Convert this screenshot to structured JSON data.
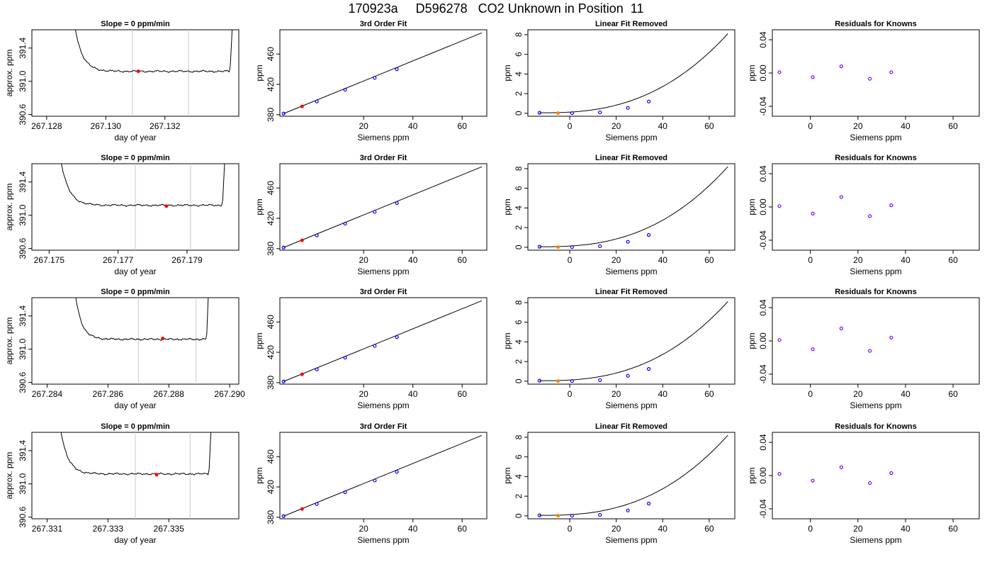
{
  "page": {
    "title": "170923a     D596278   CO2 Unknown in Position  11"
  },
  "colors": {
    "axis": "#000000",
    "trace": "#000000",
    "gridline": "#c8c8c8",
    "known_point": "#0000ff",
    "unknown_point": "#ff0000",
    "unknown_point_linear": "#ff7f00",
    "residual_point": "#8000ff"
  },
  "chart_data": [
    {
      "type": "line",
      "title": "Slope =  0  ppm/min",
      "xlabel": "day of year",
      "ylabel": "approx. ppm",
      "xlim": [
        267.1275,
        267.1345
      ],
      "ylim": [
        390.58,
        391.62
      ],
      "xticks": [
        "267.128",
        "267.130",
        "267.132"
      ],
      "xtick_values": [
        267.128,
        267.13,
        267.132
      ],
      "yticks": [
        "390.6",
        "391.0",
        "391.4"
      ],
      "ytick_values": [
        390.6,
        391.0,
        391.4
      ],
      "trace": {
        "x_start": 267.1288,
        "x_end": 267.1344,
        "level": 391.12
      },
      "window": [
        267.1309,
        267.1328
      ],
      "marker": {
        "x": 267.1311,
        "y": 391.12
      }
    },
    {
      "type": "scatter",
      "title": "3rd Order Fit",
      "xlabel": "Siemens ppm",
      "ylabel": "ppm",
      "xlim": [
        -14,
        70
      ],
      "ylim": [
        378,
        492
      ],
      "xticks": [
        "20",
        "40",
        "60"
      ],
      "xtick_values": [
        20,
        40,
        60
      ],
      "yticks": [
        "380",
        "420",
        "460"
      ],
      "ytick_values": [
        380,
        420,
        460
      ],
      "knowns": {
        "x": [
          -12.5,
          1,
          12.5,
          24.5,
          33.5
        ],
        "y": [
          381.5,
          397.5,
          413,
          428.5,
          440
        ]
      },
      "unknown": {
        "x": [
          -5
        ],
        "y": [
          391
        ]
      },
      "fit": {
        "x": [
          -12.5,
          68
        ],
        "y": [
          381.5,
          488
        ]
      }
    },
    {
      "type": "scatter",
      "title": "Linear Fit Removed",
      "xlabel": "Siemens ppm",
      "ylabel": "ppm",
      "xlim": [
        -18,
        71
      ],
      "ylim": [
        -0.3,
        8.5
      ],
      "xticks": [
        "0",
        "20",
        "40",
        "60"
      ],
      "xtick_values": [
        0,
        20,
        40,
        60
      ],
      "yticks": [
        "0",
        "2",
        "4",
        "6",
        "8"
      ],
      "ytick_values": [
        0,
        2,
        4,
        6,
        8
      ],
      "knowns": {
        "x": [
          -13,
          1,
          13,
          25,
          34
        ],
        "y": [
          0.05,
          0.02,
          0.1,
          0.55,
          1.2
        ]
      },
      "unknown": {
        "x": [
          -5
        ],
        "y": [
          0.02
        ]
      },
      "fit": {
        "x0": -13,
        "y0": 0.05,
        "x1": 68,
        "y1": 8.1
      }
    },
    {
      "type": "scatter",
      "title": "Residuals for Knowns",
      "xlabel": "Siemens ppm",
      "ylabel": "ppm",
      "xlim": [
        -16,
        71
      ],
      "ylim": [
        -0.052,
        0.052
      ],
      "xticks": [
        "0",
        "20",
        "40",
        "60"
      ],
      "xtick_values": [
        0,
        20,
        40,
        60
      ],
      "yticks": [
        "-0.04",
        "0.00",
        "0.04"
      ],
      "ytick_values": [
        -0.04,
        0,
        0.04
      ],
      "points": {
        "x": [
          -13,
          1,
          13,
          25,
          34
        ],
        "y": [
          0.001,
          -0.005,
          0.008,
          -0.007,
          0.001
        ]
      }
    },
    {
      "type": "line",
      "title": "Slope =  0  ppm/min",
      "xlabel": "day of year",
      "ylabel": "approx. ppm",
      "xlim": [
        267.1745,
        267.1805
      ],
      "ylim": [
        390.58,
        391.62
      ],
      "xticks": [
        "267.175",
        "267.177",
        "267.179"
      ],
      "xtick_values": [
        267.175,
        267.177,
        267.179
      ],
      "yticks": [
        "390.6",
        "391.0",
        "391.4"
      ],
      "ytick_values": [
        390.6,
        391.0,
        391.4
      ],
      "trace": {
        "x_start": 267.1752,
        "x_end": 267.1802,
        "level": 391.12
      },
      "window": [
        267.1775,
        267.1791
      ],
      "marker": {
        "x": 267.1784,
        "y": 391.11
      }
    },
    {
      "type": "scatter",
      "title": "3rd Order Fit",
      "xlabel": "Siemens ppm",
      "ylabel": "ppm",
      "xlim": [
        -14,
        70
      ],
      "ylim": [
        378,
        492
      ],
      "xticks": [
        "20",
        "40",
        "60"
      ],
      "xtick_values": [
        20,
        40,
        60
      ],
      "yticks": [
        "380",
        "420",
        "460"
      ],
      "ytick_values": [
        380,
        420,
        460
      ],
      "knowns": {
        "x": [
          -12.5,
          1,
          12.5,
          24.5,
          33.5
        ],
        "y": [
          381.5,
          397.5,
          413,
          428.5,
          440
        ]
      },
      "unknown": {
        "x": [
          -5
        ],
        "y": [
          391
        ]
      },
      "fit": {
        "x": [
          -12.5,
          68
        ],
        "y": [
          381.5,
          488
        ]
      }
    },
    {
      "type": "scatter",
      "title": "Linear Fit Removed",
      "xlabel": "Siemens ppm",
      "ylabel": "ppm",
      "xlim": [
        -18,
        71
      ],
      "ylim": [
        -0.3,
        8.5
      ],
      "xticks": [
        "0",
        "20",
        "40",
        "60"
      ],
      "xtick_values": [
        0,
        20,
        40,
        60
      ],
      "yticks": [
        "0",
        "2",
        "4",
        "6",
        "8"
      ],
      "ytick_values": [
        0,
        2,
        4,
        6,
        8
      ],
      "knowns": {
        "x": [
          -13,
          1,
          13,
          25,
          34
        ],
        "y": [
          0.05,
          0.02,
          0.1,
          0.55,
          1.25
        ]
      },
      "unknown": {
        "x": [
          -5
        ],
        "y": [
          0.02
        ]
      },
      "fit": {
        "x0": -13,
        "y0": 0.05,
        "x1": 68,
        "y1": 8.2
      }
    },
    {
      "type": "scatter",
      "title": "Residuals for Knowns",
      "xlabel": "Siemens ppm",
      "ylabel": "ppm",
      "xlim": [
        -16,
        71
      ],
      "ylim": [
        -0.052,
        0.052
      ],
      "xticks": [
        "0",
        "20",
        "40",
        "60"
      ],
      "xtick_values": [
        0,
        20,
        40,
        60
      ],
      "yticks": [
        "-0.04",
        "0.00",
        "0.04"
      ],
      "ytick_values": [
        -0.04,
        0,
        0.04
      ],
      "points": {
        "x": [
          -13,
          1,
          13,
          25,
          34
        ],
        "y": [
          0.001,
          -0.008,
          0.012,
          -0.011,
          0.002
        ]
      }
    },
    {
      "type": "line",
      "title": "Slope =  0  ppm/min",
      "xlabel": "day of year",
      "ylabel": "approx. ppm",
      "xlim": [
        267.2835,
        267.2903
      ],
      "ylim": [
        390.58,
        391.62
      ],
      "xticks": [
        "267.284",
        "267.286",
        "267.288",
        "267.290"
      ],
      "xtick_values": [
        267.284,
        267.286,
        267.288,
        267.29
      ],
      "yticks": [
        "390.6",
        "391.0",
        "391.4"
      ],
      "ytick_values": [
        390.6,
        391.0,
        391.4
      ],
      "trace": {
        "x_start": 267.2848,
        "x_end": 267.2894,
        "level": 391.12
      },
      "window": [
        267.287,
        267.2889
      ],
      "marker": {
        "x": 267.2878,
        "y": 391.13
      }
    },
    {
      "type": "scatter",
      "title": "3rd Order Fit",
      "xlabel": "Siemens ppm",
      "ylabel": "ppm",
      "xlim": [
        -14,
        70
      ],
      "ylim": [
        378,
        492
      ],
      "xticks": [
        "20",
        "40",
        "60"
      ],
      "xtick_values": [
        20,
        40,
        60
      ],
      "yticks": [
        "380",
        "420",
        "460"
      ],
      "ytick_values": [
        380,
        420,
        460
      ],
      "knowns": {
        "x": [
          -12.5,
          1,
          12.5,
          24.5,
          33.5
        ],
        "y": [
          381.5,
          397.5,
          413,
          428.5,
          440
        ]
      },
      "unknown": {
        "x": [
          -5
        ],
        "y": [
          391
        ]
      },
      "fit": {
        "x": [
          -12.5,
          68
        ],
        "y": [
          381.5,
          488
        ]
      }
    },
    {
      "type": "scatter",
      "title": "Linear Fit Removed",
      "xlabel": "Siemens ppm",
      "ylabel": "ppm",
      "xlim": [
        -18,
        71
      ],
      "ylim": [
        -0.3,
        8.5
      ],
      "xticks": [
        "0",
        "20",
        "40",
        "60"
      ],
      "xtick_values": [
        0,
        20,
        40,
        60
      ],
      "yticks": [
        "0",
        "2",
        "4",
        "6",
        "8"
      ],
      "ytick_values": [
        0,
        2,
        4,
        6,
        8
      ],
      "knowns": {
        "x": [
          -13,
          1,
          13,
          25,
          34
        ],
        "y": [
          0.05,
          0.02,
          0.1,
          0.55,
          1.25
        ]
      },
      "unknown": {
        "x": [
          -5
        ],
        "y": [
          0.02
        ]
      },
      "fit": {
        "x0": -13,
        "y0": 0.05,
        "x1": 68,
        "y1": 8.1
      }
    },
    {
      "type": "scatter",
      "title": "Residuals for Knowns",
      "xlabel": "Siemens ppm",
      "ylabel": "ppm",
      "xlim": [
        -16,
        71
      ],
      "ylim": [
        -0.052,
        0.052
      ],
      "xticks": [
        "0",
        "20",
        "40",
        "60"
      ],
      "xtick_values": [
        0,
        20,
        40,
        60
      ],
      "yticks": [
        "-0.04",
        "0.00",
        "0.04"
      ],
      "ytick_values": [
        -0.04,
        0,
        0.04
      ],
      "points": {
        "x": [
          -13,
          1,
          13,
          25,
          34
        ],
        "y": [
          0.001,
          -0.01,
          0.015,
          -0.012,
          0.004
        ]
      }
    },
    {
      "type": "line",
      "title": "Slope =  0  ppm/min",
      "xlabel": "day of year",
      "ylabel": "approx. ppm",
      "xlim": [
        267.3305,
        267.3373
      ],
      "ylim": [
        390.58,
        391.62
      ],
      "xticks": [
        "267.331",
        "267.333",
        "267.335"
      ],
      "xtick_values": [
        267.331,
        267.333,
        267.335
      ],
      "yticks": [
        "390.6",
        "391.0",
        "391.4"
      ],
      "ytick_values": [
        390.6,
        391.0,
        391.4
      ],
      "trace": {
        "x_start": 267.3313,
        "x_end": 267.3365,
        "level": 391.12
      },
      "window": [
        267.3339,
        267.3357
      ],
      "marker": {
        "x": 267.3346,
        "y": 391.11
      }
    },
    {
      "type": "scatter",
      "title": "3rd Order Fit",
      "xlabel": "Siemens ppm",
      "ylabel": "ppm",
      "xlim": [
        -14,
        70
      ],
      "ylim": [
        378,
        492
      ],
      "xticks": [
        "20",
        "40",
        "60"
      ],
      "xtick_values": [
        20,
        40,
        60
      ],
      "yticks": [
        "380",
        "420",
        "460"
      ],
      "ytick_values": [
        380,
        420,
        460
      ],
      "knowns": {
        "x": [
          -12.5,
          1,
          12.5,
          24.5,
          33.5
        ],
        "y": [
          381.5,
          397.5,
          413,
          428.5,
          440
        ]
      },
      "unknown": {
        "x": [
          -5
        ],
        "y": [
          391
        ]
      },
      "fit": {
        "x": [
          -12.5,
          68
        ],
        "y": [
          381.5,
          488
        ]
      }
    },
    {
      "type": "scatter",
      "title": "Linear Fit Removed",
      "xlabel": "Siemens ppm",
      "ylabel": "ppm",
      "xlim": [
        -18,
        71
      ],
      "ylim": [
        -0.3,
        8.5
      ],
      "xticks": [
        "0",
        "20",
        "40",
        "60"
      ],
      "xtick_values": [
        0,
        20,
        40,
        60
      ],
      "yticks": [
        "0",
        "2",
        "4",
        "6",
        "8"
      ],
      "ytick_values": [
        0,
        2,
        4,
        6,
        8
      ],
      "knowns": {
        "x": [
          -13,
          1,
          13,
          25,
          34
        ],
        "y": [
          0.05,
          0.02,
          0.1,
          0.55,
          1.25
        ]
      },
      "unknown": {
        "x": [
          -5
        ],
        "y": [
          0.02
        ]
      },
      "fit": {
        "x0": -13,
        "y0": 0.05,
        "x1": 68,
        "y1": 8.2
      }
    },
    {
      "type": "scatter",
      "title": "Residuals for Knowns",
      "xlabel": "Siemens ppm",
      "ylabel": "ppm",
      "xlim": [
        -16,
        71
      ],
      "ylim": [
        -0.052,
        0.052
      ],
      "points": {
        "x": [
          -13,
          1,
          13,
          25,
          34
        ],
        "y": [
          0.002,
          -0.006,
          0.01,
          -0.009,
          0.003
        ]
      },
      "xticks": [
        "0",
        "20",
        "40",
        "60"
      ],
      "xtick_values": [
        0,
        20,
        40,
        60
      ],
      "yticks": [
        "-0.04",
        "0.00",
        "0.04"
      ],
      "ytick_values": [
        -0.04,
        0,
        0.04
      ]
    }
  ]
}
